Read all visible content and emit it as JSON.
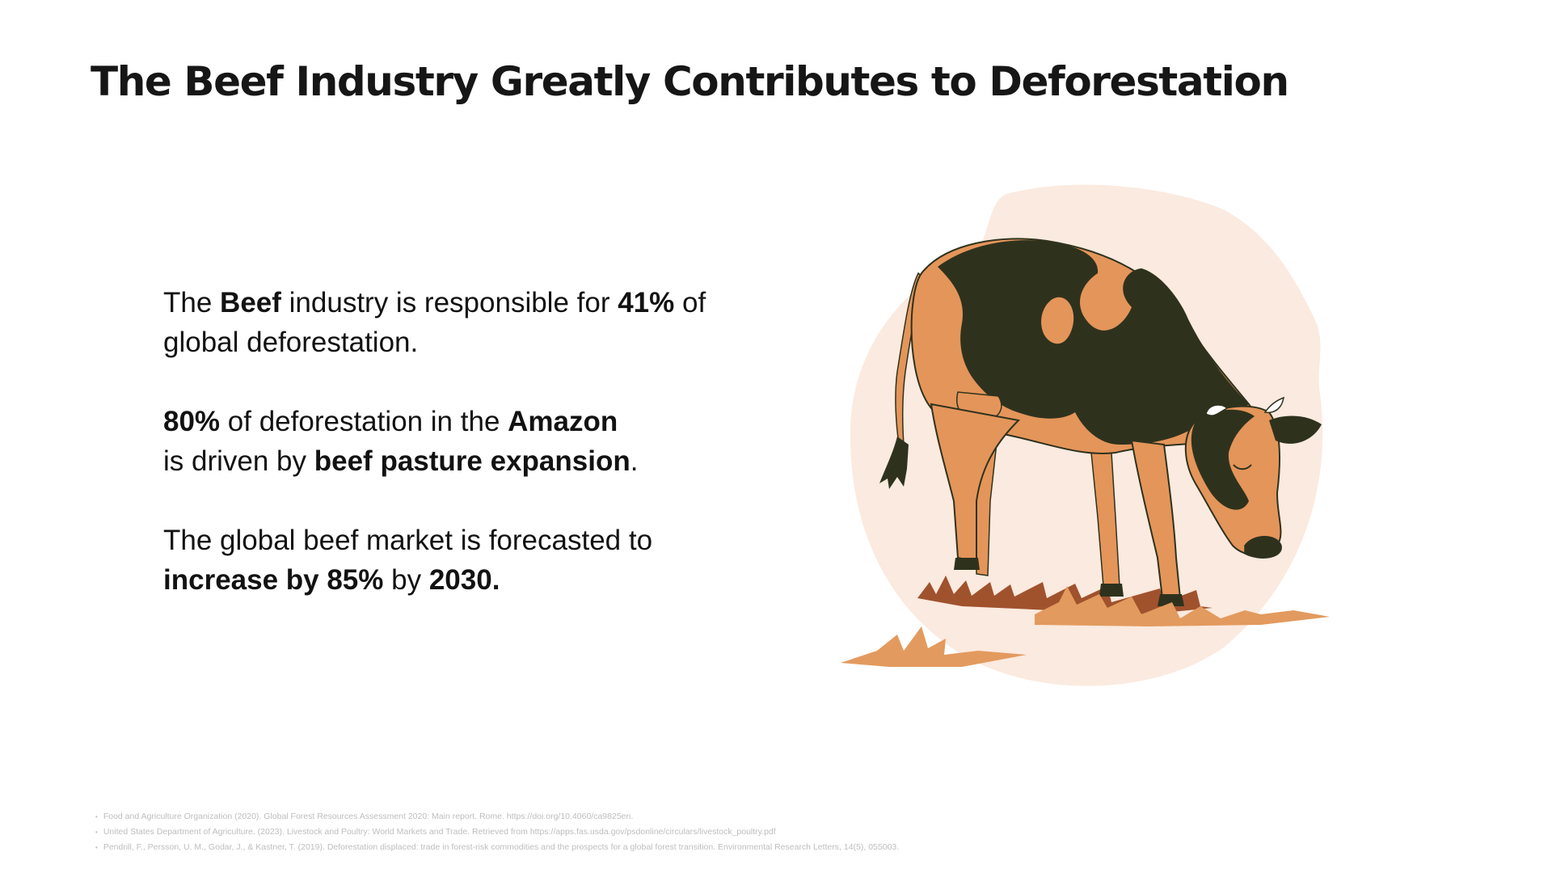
{
  "title": "The Beef Industry Greatly Contributes to Deforestation",
  "points": [
    {
      "l1_a": "The ",
      "l1_b": "Beef",
      "l1_c": " industry is responsible for ",
      "l1_d": "41%",
      "l1_e": " of",
      "l2_a": "global deforestation."
    },
    {
      "l1_a": "80%",
      "l1_b": " of deforestation in the ",
      "l1_c": "Amazon",
      "l2_a": "is driven by ",
      "l2_b": "beef pasture expansion",
      "l2_c": "."
    },
    {
      "l1_a": "The global beef market is forecasted to",
      "l2_a": "increase by 85%",
      "l2_b": " by ",
      "l2_c": "2030."
    }
  ],
  "references": [
    "Food and Agriculture Organization (2020). Global Forest Resources Assessment 2020: Main report. Rome. https://doi.org/10.4060/ca9825en.",
    "United States Department of Agriculture. (2023). Livestock and Poultry: World Markets and Trade. Retrieved from https://apps.fas.usda.gov/psdonline/circulars/livestock_poultry.pdf",
    "Pendrill, F., Persson, U. M., Godar, J., & Kastner, T. (2019). Deforestation displaced: trade in forest-risk commodities and the prospects for a global forest transition. Environmental Research Letters, 14(5), 055003."
  ],
  "colors": {
    "blob": "#fbeadf",
    "cow_orange": "#e4955a",
    "cow_dark": "#2e321d",
    "grass_light": "#e39a5e",
    "grass_dark": "#a0522d",
    "text": "#121212",
    "reference_text": "#bdbdbd"
  },
  "illustration": {
    "icon": "grazing-cow-icon"
  }
}
